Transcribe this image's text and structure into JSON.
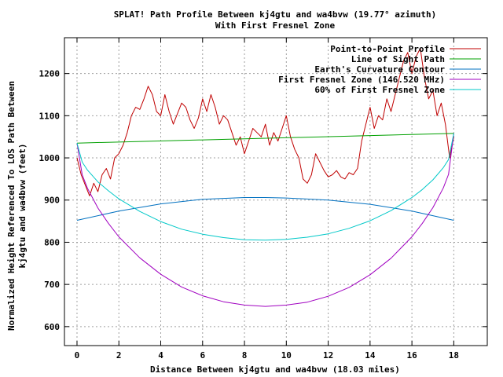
{
  "chart_data": {
    "type": "line",
    "title": "SPLAT! Path Profile Between kj4gtu and wa4bvw (19.77° azimuth)",
    "subtitle": "With First Fresnel Zone",
    "xlabel": "Distance Between kj4gtu and wa4bvw (18.03 miles)",
    "ylabel_line1": "Normalized Height Referenced To LOS Path Between",
    "ylabel_line2": "kj4gtu and wa4bvw (feet)",
    "xlim": [
      -0.6,
      19.6
    ],
    "ylim": [
      555,
      1285
    ],
    "xticks": [
      0,
      2,
      4,
      6,
      8,
      10,
      12,
      14,
      16,
      18
    ],
    "yticks": [
      600,
      700,
      800,
      900,
      1000,
      1100,
      1200
    ],
    "grid": true,
    "legend_position": "top-right",
    "series": [
      {
        "name": "Point-to-Point Profile",
        "color": "#c00000",
        "x": [
          0,
          0.2,
          0.4,
          0.6,
          0.8,
          1.0,
          1.2,
          1.4,
          1.6,
          1.8,
          2.0,
          2.2,
          2.4,
          2.6,
          2.8,
          3.0,
          3.2,
          3.4,
          3.6,
          3.8,
          4.0,
          4.2,
          4.4,
          4.6,
          4.8,
          5.0,
          5.2,
          5.4,
          5.6,
          5.8,
          6.0,
          6.2,
          6.4,
          6.6,
          6.8,
          7.0,
          7.2,
          7.4,
          7.6,
          7.8,
          8.0,
          8.2,
          8.4,
          8.6,
          8.8,
          9.0,
          9.2,
          9.4,
          9.6,
          9.8,
          10.0,
          10.2,
          10.4,
          10.6,
          10.8,
          11.0,
          11.2,
          11.4,
          11.6,
          11.8,
          12.0,
          12.2,
          12.4,
          12.6,
          12.8,
          13.0,
          13.2,
          13.4,
          13.6,
          13.8,
          14.0,
          14.2,
          14.4,
          14.6,
          14.8,
          15.0,
          15.2,
          15.4,
          15.6,
          15.8,
          16.0,
          16.2,
          16.4,
          16.6,
          16.8,
          17.0,
          17.2,
          17.4,
          17.6,
          17.8,
          18.0
        ],
        "values": [
          1000,
          960,
          935,
          910,
          940,
          920,
          960,
          975,
          950,
          1000,
          1010,
          1030,
          1060,
          1100,
          1120,
          1115,
          1140,
          1170,
          1150,
          1110,
          1100,
          1150,
          1110,
          1080,
          1105,
          1130,
          1120,
          1090,
          1070,
          1095,
          1140,
          1110,
          1150,
          1120,
          1080,
          1100,
          1090,
          1060,
          1030,
          1050,
          1010,
          1040,
          1070,
          1060,
          1050,
          1080,
          1030,
          1060,
          1040,
          1070,
          1100,
          1050,
          1020,
          1000,
          950,
          940,
          960,
          1010,
          990,
          970,
          955,
          960,
          970,
          955,
          950,
          965,
          960,
          975,
          1040,
          1080,
          1120,
          1070,
          1100,
          1090,
          1140,
          1110,
          1150,
          1190,
          1230,
          1250,
          1200,
          1240,
          1260,
          1190,
          1140,
          1160,
          1100,
          1130,
          1080,
          1000,
          1050
        ]
      },
      {
        "name": "Line of Sight Path",
        "color": "#00a000",
        "x": [
          0,
          18
        ],
        "values": [
          1035,
          1058
        ]
      },
      {
        "name": "Earth's Curvature Contour",
        "color": "#0070c0",
        "x": [
          0,
          2,
          4,
          6,
          8,
          9,
          10,
          12,
          14,
          16,
          18
        ],
        "values": [
          852,
          874,
          891,
          902,
          906,
          906,
          905,
          900,
          890,
          874,
          852
        ]
      },
      {
        "name": "First Fresnel Zone (146.520 MHz)",
        "color": "#a000c0",
        "x": [
          0,
          0.25,
          0.5,
          1,
          1.5,
          2,
          3,
          4,
          5,
          6,
          7,
          8,
          9,
          10,
          11,
          12,
          13,
          14,
          15,
          16,
          16.5,
          17,
          17.5,
          17.75,
          18
        ],
        "values": [
          1035,
          960,
          928,
          881,
          845,
          813,
          763,
          724,
          694,
          673,
          659,
          651,
          648,
          651,
          658,
          672,
          693,
          723,
          762,
          813,
          845,
          882,
          929,
          961,
          1058
        ]
      },
      {
        "name": "60% of First Fresnel Zone",
        "color": "#00c8c8",
        "x": [
          0,
          0.25,
          0.5,
          1,
          1.5,
          2,
          3,
          4,
          5,
          6,
          7,
          8,
          9,
          10,
          11,
          12,
          13,
          14,
          15,
          16,
          16.5,
          17,
          17.5,
          17.75,
          18
        ],
        "values": [
          1035,
          990,
          971,
          943,
          922,
          903,
          873,
          849,
          831,
          819,
          811,
          806,
          805,
          807,
          812,
          820,
          833,
          851,
          875,
          906,
          925,
          948,
          977,
          996,
          1058
        ]
      }
    ]
  }
}
